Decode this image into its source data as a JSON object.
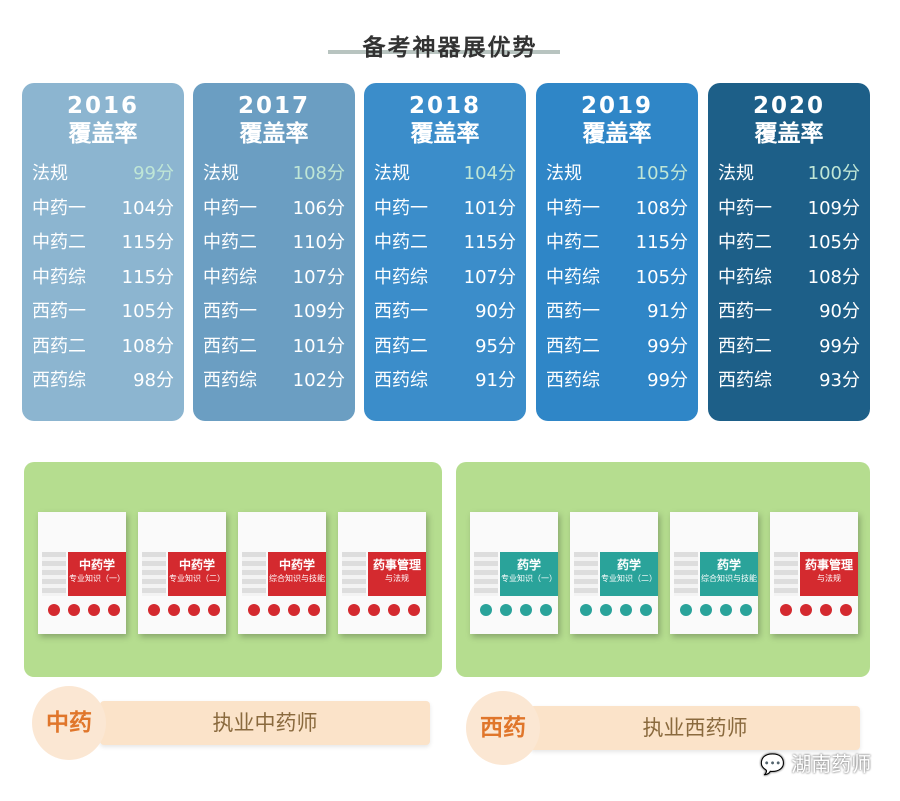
{
  "title": "备考神器展优势",
  "cards": [
    {
      "year": "2016",
      "label": "覆盖率",
      "color": "#8cb5d0",
      "rows": [
        [
          "法规",
          "99分"
        ],
        [
          "中药一",
          "104分"
        ],
        [
          "中药二",
          "115分"
        ],
        [
          "中药综",
          "115分"
        ],
        [
          "西药一",
          "105分"
        ],
        [
          "西药二",
          "108分"
        ],
        [
          "西药综",
          "98分"
        ]
      ]
    },
    {
      "year": "2017",
      "label": "覆盖率",
      "color": "#6b9ec2",
      "rows": [
        [
          "法规",
          "108分"
        ],
        [
          "中药一",
          "106分"
        ],
        [
          "中药二",
          "110分"
        ],
        [
          "中药综",
          "107分"
        ],
        [
          "西药一",
          "109分"
        ],
        [
          "西药二",
          "101分"
        ],
        [
          "西药综",
          "102分"
        ]
      ]
    },
    {
      "year": "2018",
      "label": "覆盖率",
      "color": "#3b8dca",
      "rows": [
        [
          "法规",
          "104分"
        ],
        [
          "中药一",
          "101分"
        ],
        [
          "中药二",
          "115分"
        ],
        [
          "中药综",
          "107分"
        ],
        [
          "西药一",
          "90分"
        ],
        [
          "西药二",
          "95分"
        ],
        [
          "西药综",
          "91分"
        ]
      ]
    },
    {
      "year": "2019",
      "label": "覆盖率",
      "color": "#2f86c7",
      "rows": [
        [
          "法规",
          "105分"
        ],
        [
          "中药一",
          "108分"
        ],
        [
          "中药二",
          "115分"
        ],
        [
          "中药综",
          "105分"
        ],
        [
          "西药一",
          "91分"
        ],
        [
          "西药二",
          "99分"
        ],
        [
          "西药综",
          "99分"
        ]
      ]
    },
    {
      "year": "2020",
      "label": "覆盖率",
      "color": "#1d5f88",
      "rows": [
        [
          "法规",
          "100分"
        ],
        [
          "中药一",
          "109分"
        ],
        [
          "中药二",
          "105分"
        ],
        [
          "中药综",
          "108分"
        ],
        [
          "西药一",
          "90分"
        ],
        [
          "西药二",
          "99分"
        ],
        [
          "西药综",
          "93分"
        ]
      ]
    }
  ],
  "panels": [
    {
      "badge": "中药",
      "label": "执业中药师",
      "books": [
        {
          "title": "中药学",
          "sub": "专业知识（一）",
          "color": "#d42a2f"
        },
        {
          "title": "中药学",
          "sub": "专业知识（二）",
          "color": "#d42a2f"
        },
        {
          "title": "中药学",
          "sub": "综合知识与技能",
          "color": "#d42a2f"
        },
        {
          "title": "药事管理",
          "sub": "与法规",
          "color": "#d42a2f"
        }
      ]
    },
    {
      "badge": "西药",
      "label": "执业西药师",
      "books": [
        {
          "title": "药学",
          "sub": "专业知识（一）",
          "color": "#2aa39a"
        },
        {
          "title": "药学",
          "sub": "专业知识（二）",
          "color": "#2aa39a"
        },
        {
          "title": "药学",
          "sub": "综合知识与技能",
          "color": "#2aa39a"
        },
        {
          "title": "药事管理",
          "sub": "与法规",
          "color": "#d42a2f"
        }
      ]
    }
  ],
  "watermark": "湖南药师"
}
